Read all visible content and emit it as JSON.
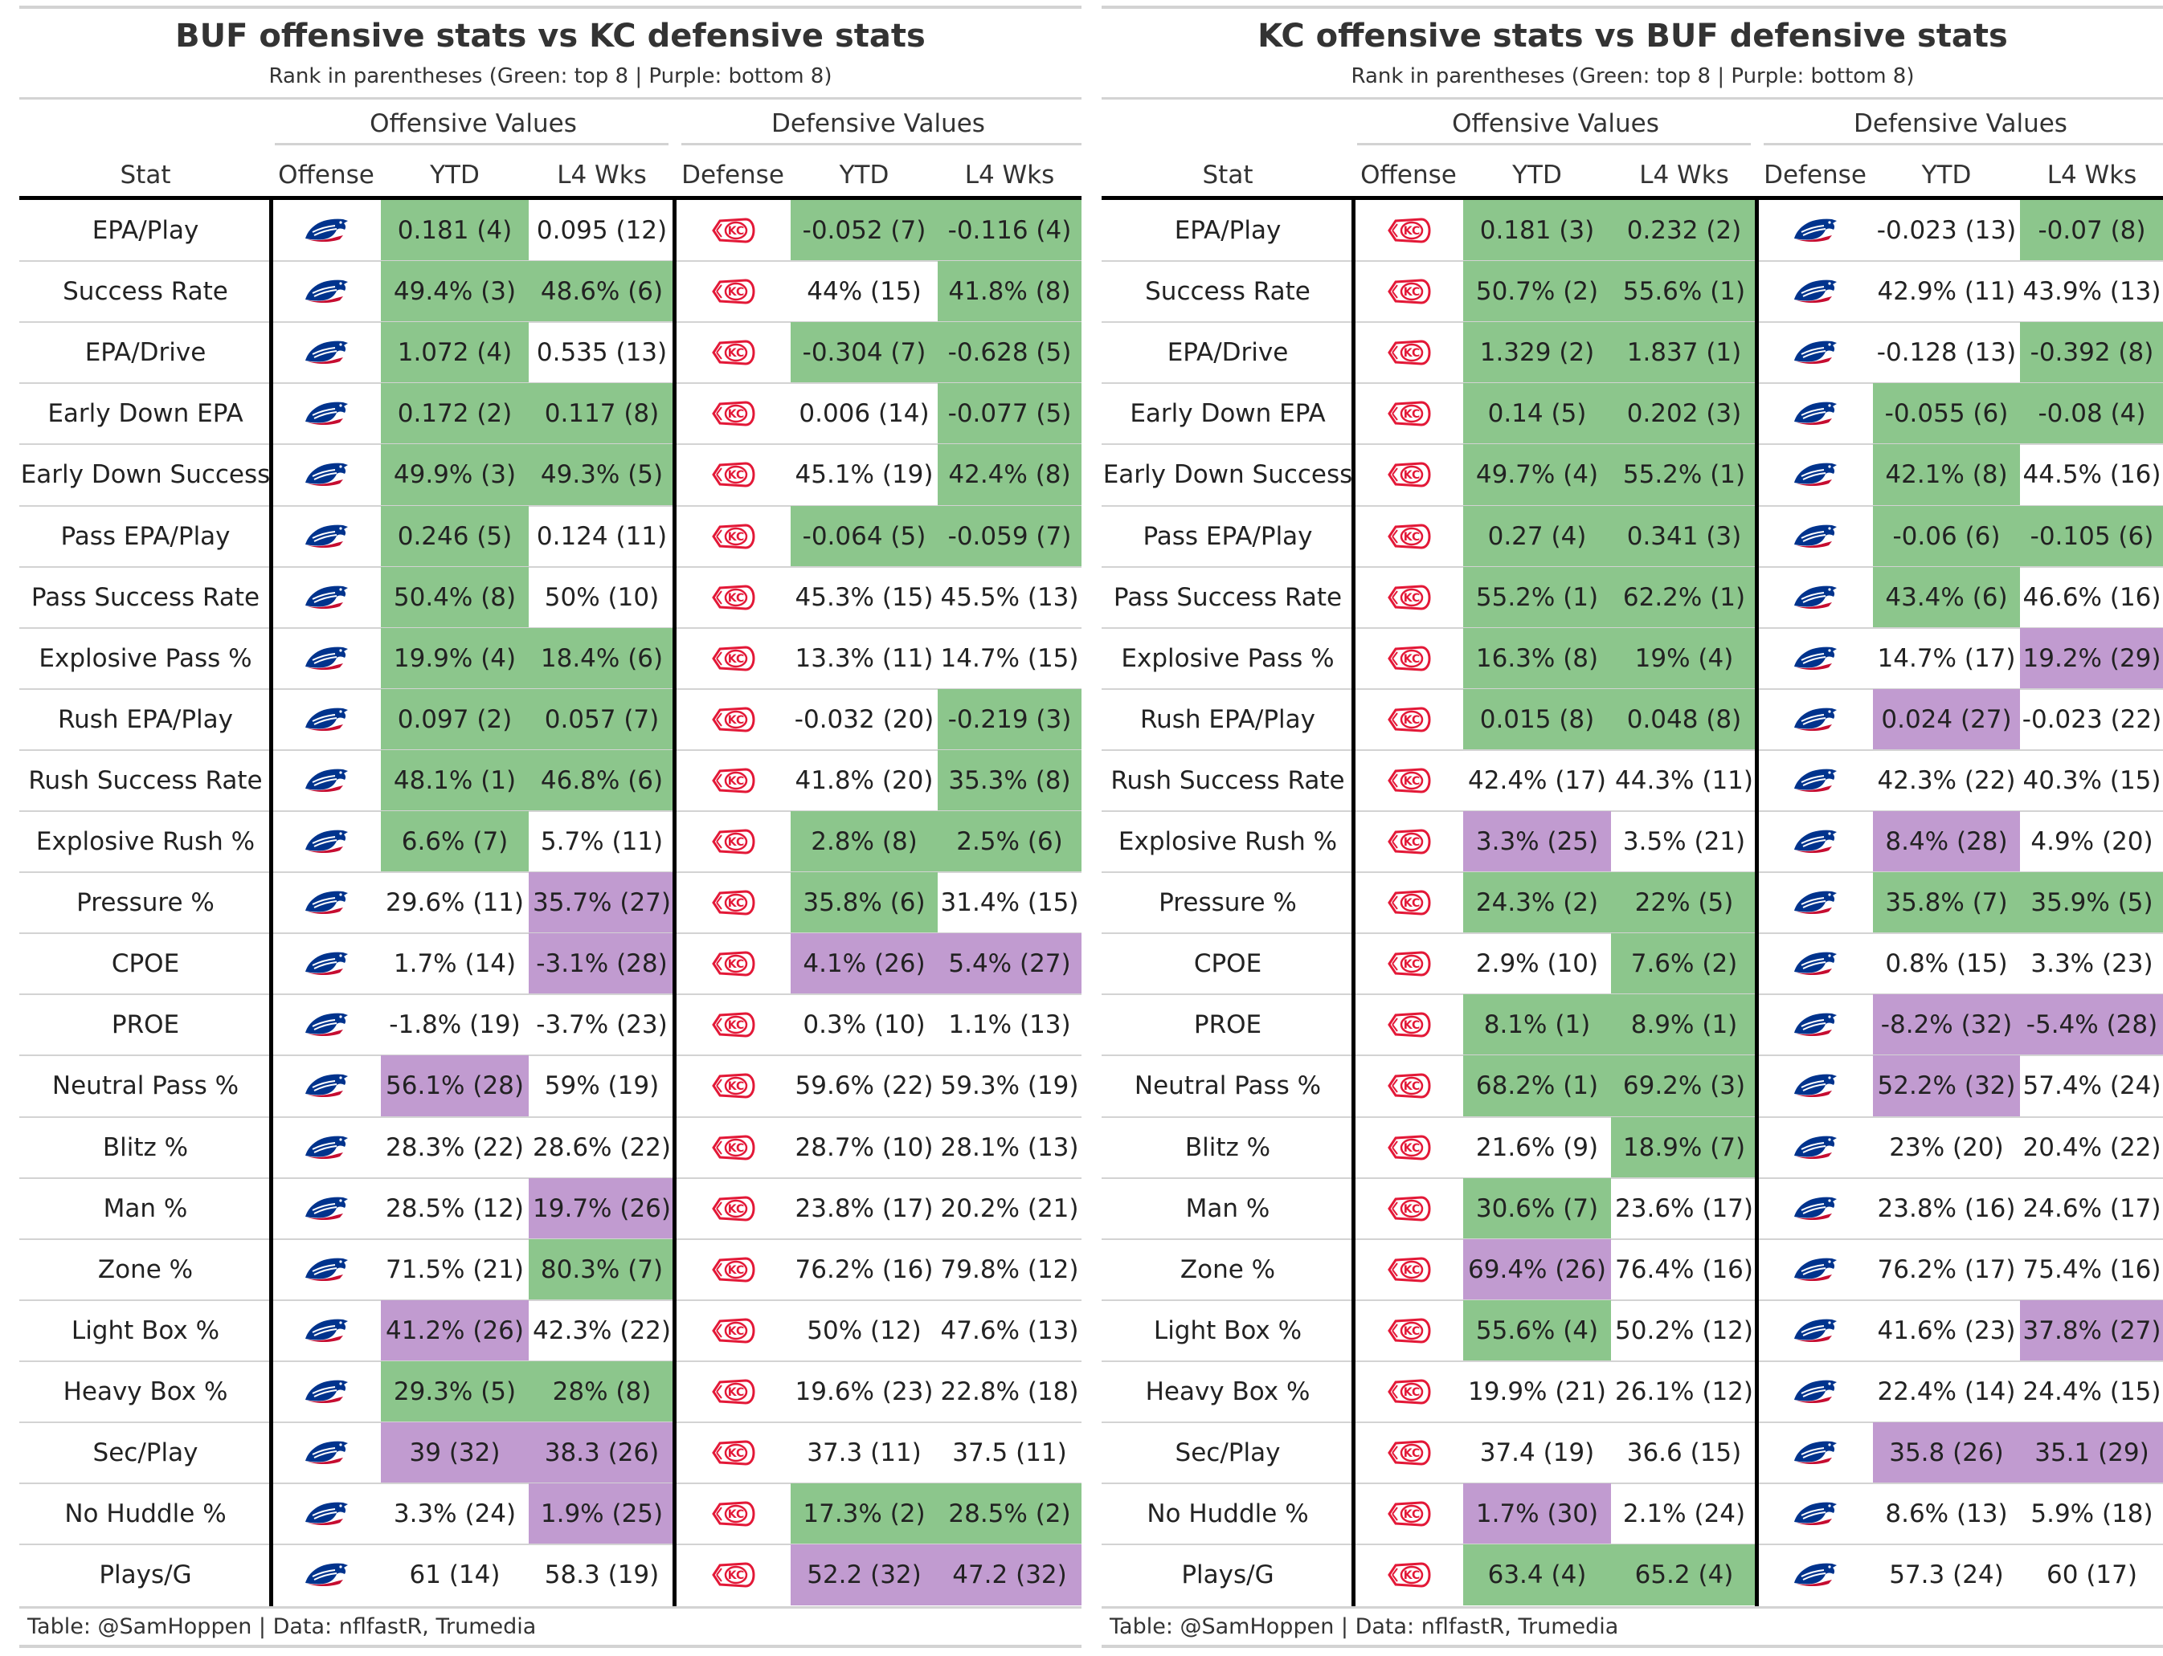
{
  "colors": {
    "good": "#8cc68c",
    "bad": "#c19bd0",
    "bills_blue": "#00338d",
    "bills_red": "#c60c30",
    "chiefs_red": "#e31837"
  },
  "stats": [
    "EPA/Play",
    "Success Rate",
    "EPA/Drive",
    "Early Down EPA",
    "Early Down Success",
    "Pass EPA/Play",
    "Pass Success Rate",
    "Explosive Pass %",
    "Rush EPA/Play",
    "Rush Success Rate",
    "Explosive Rush %",
    "Pressure %",
    "CPOE",
    "PROE",
    "Neutral Pass %",
    "Blitz %",
    "Man %",
    "Zone %",
    "Light Box %",
    "Heavy Box %",
    "Sec/Play",
    "No Huddle %",
    "Plays/G"
  ],
  "tables": [
    {
      "title": "BUF offensive stats vs KC defensive stats",
      "subtitle": "Rank in parentheses (Green: top 8 | Purple: bottom 8)",
      "spanner_offense": "Offensive Values",
      "spanner_defense": "Defensive Values",
      "headers": {
        "stat": "Stat",
        "offense": "Offense",
        "off_ytd": "YTD",
        "off_l4": "L4 Wks",
        "defense": "Defense",
        "def_ytd": "YTD",
        "def_l4": "L4 Wks"
      },
      "offense_logo": "bills-logo-icon",
      "defense_logo": "chiefs-logo-icon",
      "caption": "Table: @SamHoppen | Data: nflfastR, Trumedia",
      "rows": [
        {
          "off_ytd": "0.181 (4)",
          "off_ytd_c": "g",
          "off_l4": "0.095 (12)",
          "off_l4_c": "",
          "def_ytd": "-0.052 (7)",
          "def_ytd_c": "g",
          "def_l4": "-0.116 (4)",
          "def_l4_c": "g"
        },
        {
          "off_ytd": "49.4% (3)",
          "off_ytd_c": "g",
          "off_l4": "48.6% (6)",
          "off_l4_c": "g",
          "def_ytd": "44% (15)",
          "def_ytd_c": "",
          "def_l4": "41.8% (8)",
          "def_l4_c": "g"
        },
        {
          "off_ytd": "1.072 (4)",
          "off_ytd_c": "g",
          "off_l4": "0.535 (13)",
          "off_l4_c": "",
          "def_ytd": "-0.304 (7)",
          "def_ytd_c": "g",
          "def_l4": "-0.628 (5)",
          "def_l4_c": "g"
        },
        {
          "off_ytd": "0.172 (2)",
          "off_ytd_c": "g",
          "off_l4": "0.117 (8)",
          "off_l4_c": "g",
          "def_ytd": "0.006 (14)",
          "def_ytd_c": "",
          "def_l4": "-0.077 (5)",
          "def_l4_c": "g"
        },
        {
          "off_ytd": "49.9% (3)",
          "off_ytd_c": "g",
          "off_l4": "49.3% (5)",
          "off_l4_c": "g",
          "def_ytd": "45.1% (19)",
          "def_ytd_c": "",
          "def_l4": "42.4% (8)",
          "def_l4_c": "g"
        },
        {
          "off_ytd": "0.246 (5)",
          "off_ytd_c": "g",
          "off_l4": "0.124 (11)",
          "off_l4_c": "",
          "def_ytd": "-0.064 (5)",
          "def_ytd_c": "g",
          "def_l4": "-0.059 (7)",
          "def_l4_c": "g"
        },
        {
          "off_ytd": "50.4% (8)",
          "off_ytd_c": "g",
          "off_l4": "50% (10)",
          "off_l4_c": "",
          "def_ytd": "45.3% (15)",
          "def_ytd_c": "",
          "def_l4": "45.5% (13)",
          "def_l4_c": ""
        },
        {
          "off_ytd": "19.9% (4)",
          "off_ytd_c": "g",
          "off_l4": "18.4% (6)",
          "off_l4_c": "g",
          "def_ytd": "13.3% (11)",
          "def_ytd_c": "",
          "def_l4": "14.7% (15)",
          "def_l4_c": ""
        },
        {
          "off_ytd": "0.097 (2)",
          "off_ytd_c": "g",
          "off_l4": "0.057 (7)",
          "off_l4_c": "g",
          "def_ytd": "-0.032 (20)",
          "def_ytd_c": "",
          "def_l4": "-0.219 (3)",
          "def_l4_c": "g"
        },
        {
          "off_ytd": "48.1% (1)",
          "off_ytd_c": "g",
          "off_l4": "46.8% (6)",
          "off_l4_c": "g",
          "def_ytd": "41.8% (20)",
          "def_ytd_c": "",
          "def_l4": "35.3% (8)",
          "def_l4_c": "g"
        },
        {
          "off_ytd": "6.6% (7)",
          "off_ytd_c": "g",
          "off_l4": "5.7% (11)",
          "off_l4_c": "",
          "def_ytd": "2.8% (8)",
          "def_ytd_c": "g",
          "def_l4": "2.5% (6)",
          "def_l4_c": "g"
        },
        {
          "off_ytd": "29.6% (11)",
          "off_ytd_c": "",
          "off_l4": "35.7% (27)",
          "off_l4_c": "p",
          "def_ytd": "35.8% (6)",
          "def_ytd_c": "g",
          "def_l4": "31.4% (15)",
          "def_l4_c": ""
        },
        {
          "off_ytd": "1.7% (14)",
          "off_ytd_c": "",
          "off_l4": "-3.1% (28)",
          "off_l4_c": "p",
          "def_ytd": "4.1% (26)",
          "def_ytd_c": "p",
          "def_l4": "5.4% (27)",
          "def_l4_c": "p"
        },
        {
          "off_ytd": "-1.8% (19)",
          "off_ytd_c": "",
          "off_l4": "-3.7% (23)",
          "off_l4_c": "",
          "def_ytd": "0.3% (10)",
          "def_ytd_c": "",
          "def_l4": "1.1% (13)",
          "def_l4_c": ""
        },
        {
          "off_ytd": "56.1% (28)",
          "off_ytd_c": "p",
          "off_l4": "59% (19)",
          "off_l4_c": "",
          "def_ytd": "59.6% (22)",
          "def_ytd_c": "",
          "def_l4": "59.3% (19)",
          "def_l4_c": ""
        },
        {
          "off_ytd": "28.3% (22)",
          "off_ytd_c": "",
          "off_l4": "28.6% (22)",
          "off_l4_c": "",
          "def_ytd": "28.7% (10)",
          "def_ytd_c": "",
          "def_l4": "28.1% (13)",
          "def_l4_c": ""
        },
        {
          "off_ytd": "28.5% (12)",
          "off_ytd_c": "",
          "off_l4": "19.7% (26)",
          "off_l4_c": "p",
          "def_ytd": "23.8% (17)",
          "def_ytd_c": "",
          "def_l4": "20.2% (21)",
          "def_l4_c": ""
        },
        {
          "off_ytd": "71.5% (21)",
          "off_ytd_c": "",
          "off_l4": "80.3% (7)",
          "off_l4_c": "g",
          "def_ytd": "76.2% (16)",
          "def_ytd_c": "",
          "def_l4": "79.8% (12)",
          "def_l4_c": ""
        },
        {
          "off_ytd": "41.2% (26)",
          "off_ytd_c": "p",
          "off_l4": "42.3% (22)",
          "off_l4_c": "",
          "def_ytd": "50% (12)",
          "def_ytd_c": "",
          "def_l4": "47.6% (13)",
          "def_l4_c": ""
        },
        {
          "off_ytd": "29.3% (5)",
          "off_ytd_c": "g",
          "off_l4": "28% (8)",
          "off_l4_c": "g",
          "def_ytd": "19.6% (23)",
          "def_ytd_c": "",
          "def_l4": "22.8% (18)",
          "def_l4_c": ""
        },
        {
          "off_ytd": "39 (32)",
          "off_ytd_c": "p",
          "off_l4": "38.3 (26)",
          "off_l4_c": "p",
          "def_ytd": "37.3 (11)",
          "def_ytd_c": "",
          "def_l4": "37.5 (11)",
          "def_l4_c": ""
        },
        {
          "off_ytd": "3.3% (24)",
          "off_ytd_c": "",
          "off_l4": "1.9% (25)",
          "off_l4_c": "p",
          "def_ytd": "17.3% (2)",
          "def_ytd_c": "g",
          "def_l4": "28.5% (2)",
          "def_l4_c": "g"
        },
        {
          "off_ytd": "61 (14)",
          "off_ytd_c": "",
          "off_l4": "58.3 (19)",
          "off_l4_c": "",
          "def_ytd": "52.2 (32)",
          "def_ytd_c": "p",
          "def_l4": "47.2 (32)",
          "def_l4_c": "p"
        }
      ]
    },
    {
      "title": "KC offensive stats vs BUF defensive stats",
      "subtitle": "Rank in parentheses (Green: top 8 | Purple: bottom 8)",
      "spanner_offense": "Offensive Values",
      "spanner_defense": "Defensive Values",
      "headers": {
        "stat": "Stat",
        "offense": "Offense",
        "off_ytd": "YTD",
        "off_l4": "L4 Wks",
        "defense": "Defense",
        "def_ytd": "YTD",
        "def_l4": "L4 Wks"
      },
      "offense_logo": "chiefs-logo-icon",
      "defense_logo": "bills-logo-icon",
      "caption": "Table: @SamHoppen | Data: nflfastR, Trumedia",
      "rows": [
        {
          "off_ytd": "0.181 (3)",
          "off_ytd_c": "g",
          "off_l4": "0.232 (2)",
          "off_l4_c": "g",
          "def_ytd": "-0.023 (13)",
          "def_ytd_c": "",
          "def_l4": "-0.07 (8)",
          "def_l4_c": "g"
        },
        {
          "off_ytd": "50.7% (2)",
          "off_ytd_c": "g",
          "off_l4": "55.6% (1)",
          "off_l4_c": "g",
          "def_ytd": "42.9% (11)",
          "def_ytd_c": "",
          "def_l4": "43.9% (13)",
          "def_l4_c": ""
        },
        {
          "off_ytd": "1.329 (2)",
          "off_ytd_c": "g",
          "off_l4": "1.837 (1)",
          "off_l4_c": "g",
          "def_ytd": "-0.128 (13)",
          "def_ytd_c": "",
          "def_l4": "-0.392 (8)",
          "def_l4_c": "g"
        },
        {
          "off_ytd": "0.14 (5)",
          "off_ytd_c": "g",
          "off_l4": "0.202 (3)",
          "off_l4_c": "g",
          "def_ytd": "-0.055 (6)",
          "def_ytd_c": "g",
          "def_l4": "-0.08 (4)",
          "def_l4_c": "g"
        },
        {
          "off_ytd": "49.7% (4)",
          "off_ytd_c": "g",
          "off_l4": "55.2% (1)",
          "off_l4_c": "g",
          "def_ytd": "42.1% (8)",
          "def_ytd_c": "g",
          "def_l4": "44.5% (16)",
          "def_l4_c": ""
        },
        {
          "off_ytd": "0.27 (4)",
          "off_ytd_c": "g",
          "off_l4": "0.341 (3)",
          "off_l4_c": "g",
          "def_ytd": "-0.06 (6)",
          "def_ytd_c": "g",
          "def_l4": "-0.105 (6)",
          "def_l4_c": "g"
        },
        {
          "off_ytd": "55.2% (1)",
          "off_ytd_c": "g",
          "off_l4": "62.2% (1)",
          "off_l4_c": "g",
          "def_ytd": "43.4% (6)",
          "def_ytd_c": "g",
          "def_l4": "46.6% (16)",
          "def_l4_c": ""
        },
        {
          "off_ytd": "16.3% (8)",
          "off_ytd_c": "g",
          "off_l4": "19% (4)",
          "off_l4_c": "g",
          "def_ytd": "14.7% (17)",
          "def_ytd_c": "",
          "def_l4": "19.2% (29)",
          "def_l4_c": "p"
        },
        {
          "off_ytd": "0.015 (8)",
          "off_ytd_c": "g",
          "off_l4": "0.048 (8)",
          "off_l4_c": "g",
          "def_ytd": "0.024 (27)",
          "def_ytd_c": "p",
          "def_l4": "-0.023 (22)",
          "def_l4_c": ""
        },
        {
          "off_ytd": "42.4% (17)",
          "off_ytd_c": "",
          "off_l4": "44.3% (11)",
          "off_l4_c": "",
          "def_ytd": "42.3% (22)",
          "def_ytd_c": "",
          "def_l4": "40.3% (15)",
          "def_l4_c": ""
        },
        {
          "off_ytd": "3.3% (25)",
          "off_ytd_c": "p",
          "off_l4": "3.5% (21)",
          "off_l4_c": "",
          "def_ytd": "8.4% (28)",
          "def_ytd_c": "p",
          "def_l4": "4.9% (20)",
          "def_l4_c": ""
        },
        {
          "off_ytd": "24.3% (2)",
          "off_ytd_c": "g",
          "off_l4": "22% (5)",
          "off_l4_c": "g",
          "def_ytd": "35.8% (7)",
          "def_ytd_c": "g",
          "def_l4": "35.9% (5)",
          "def_l4_c": "g"
        },
        {
          "off_ytd": "2.9% (10)",
          "off_ytd_c": "",
          "off_l4": "7.6% (2)",
          "off_l4_c": "g",
          "def_ytd": "0.8% (15)",
          "def_ytd_c": "",
          "def_l4": "3.3% (23)",
          "def_l4_c": ""
        },
        {
          "off_ytd": "8.1% (1)",
          "off_ytd_c": "g",
          "off_l4": "8.9% (1)",
          "off_l4_c": "g",
          "def_ytd": "-8.2% (32)",
          "def_ytd_c": "p",
          "def_l4": "-5.4% (28)",
          "def_l4_c": "p"
        },
        {
          "off_ytd": "68.2% (1)",
          "off_ytd_c": "g",
          "off_l4": "69.2% (3)",
          "off_l4_c": "g",
          "def_ytd": "52.2% (32)",
          "def_ytd_c": "p",
          "def_l4": "57.4% (24)",
          "def_l4_c": ""
        },
        {
          "off_ytd": "21.6% (9)",
          "off_ytd_c": "",
          "off_l4": "18.9% (7)",
          "off_l4_c": "g",
          "def_ytd": "23% (20)",
          "def_ytd_c": "",
          "def_l4": "20.4% (22)",
          "def_l4_c": ""
        },
        {
          "off_ytd": "30.6% (7)",
          "off_ytd_c": "g",
          "off_l4": "23.6% (17)",
          "off_l4_c": "",
          "def_ytd": "23.8% (16)",
          "def_ytd_c": "",
          "def_l4": "24.6% (17)",
          "def_l4_c": ""
        },
        {
          "off_ytd": "69.4% (26)",
          "off_ytd_c": "p",
          "off_l4": "76.4% (16)",
          "off_l4_c": "",
          "def_ytd": "76.2% (17)",
          "def_ytd_c": "",
          "def_l4": "75.4% (16)",
          "def_l4_c": ""
        },
        {
          "off_ytd": "55.6% (4)",
          "off_ytd_c": "g",
          "off_l4": "50.2% (12)",
          "off_l4_c": "",
          "def_ytd": "41.6% (23)",
          "def_ytd_c": "",
          "def_l4": "37.8% (27)",
          "def_l4_c": "p"
        },
        {
          "off_ytd": "19.9% (21)",
          "off_ytd_c": "",
          "off_l4": "26.1% (12)",
          "off_l4_c": "",
          "def_ytd": "22.4% (14)",
          "def_ytd_c": "",
          "def_l4": "24.4% (15)",
          "def_l4_c": ""
        },
        {
          "off_ytd": "37.4 (19)",
          "off_ytd_c": "",
          "off_l4": "36.6 (15)",
          "off_l4_c": "",
          "def_ytd": "35.8 (26)",
          "def_ytd_c": "p",
          "def_l4": "35.1 (29)",
          "def_l4_c": "p"
        },
        {
          "off_ytd": "1.7% (30)",
          "off_ytd_c": "p",
          "off_l4": "2.1% (24)",
          "off_l4_c": "",
          "def_ytd": "8.6% (13)",
          "def_ytd_c": "",
          "def_l4": "5.9% (18)",
          "def_l4_c": ""
        },
        {
          "off_ytd": "63.4 (4)",
          "off_ytd_c": "g",
          "off_l4": "65.2 (4)",
          "off_l4_c": "g",
          "def_ytd": "57.3 (24)",
          "def_ytd_c": "",
          "def_l4": "60 (17)",
          "def_l4_c": ""
        }
      ]
    }
  ]
}
